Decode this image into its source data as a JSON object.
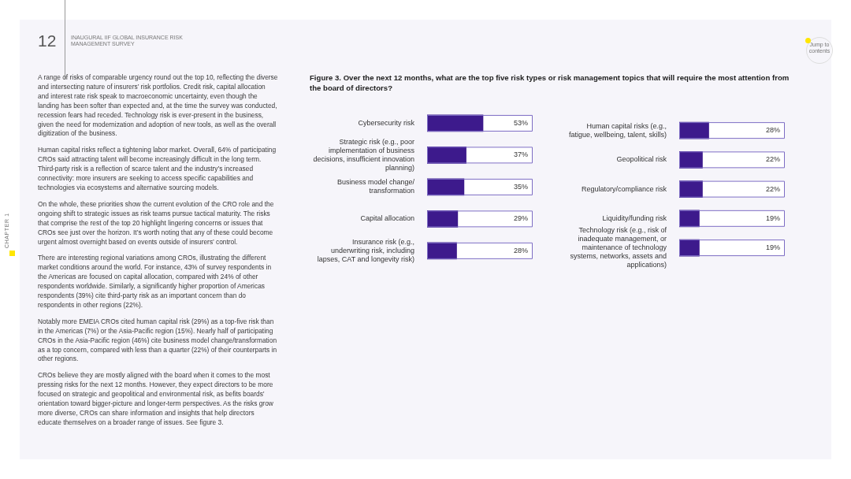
{
  "chart_data": [
    {
      "type": "other",
      "annotations": [
        "12",
        "INAUGURAL IIF GLOBAL INSURANCE RISK MANAGEMENT SURVEY",
        "A range of risks of comparable urgency round out the top 10, reflecting the diverse and intersecting nature of insurers’ risk portfolios. Credit risk, capital allocation and interest rate risk speak to macroeconomic uncertainty, even though the landing has been softer than expected and, at the time the survey was conducted, recession fears had receded. Technology risk is ever-present in the business, given the need for modernization and adoption of new tools, as well as the overall digitization of the business.",
        "Human capital risks reflect a tightening labor market. Overall, 64% of participating CROs said attracting talent will become increasingly difficult in the long term. Third-party risk is a reflection of scarce talent and the industry’s increased connectivity: more insurers are seeking to access specific capabilities and technologies via ecosystems and alternative sourcing models.",
        "On the whole, these priorities show the current evolution of the CRO role and the ongoing shift to strategic issues as risk teams pursue tactical maturity. The risks that comprise the rest of the top 20 highlight lingering concerns or issues that CROs see just over the horizon. It’s worth noting that any of these could become urgent almost overnight based on events outside of insurers’ control.",
        "There are interesting regional variations among CROs, illustrating the different market conditions around the world. For instance, 43% of survey respondents in the Americas are focused on capital allocation, compared with 24% of other respondents worldwide. Similarly, a significantly higher proportion of Americas respondents (39%) cite third-party risk as an important concern than do respondents in other regions (22%).",
        "Notably more EMEIA CROs cited human capital risk (29%) as a top-five risk than in the Americas (7%) or the Asia-Pacific region (15%). Nearly half of participating CROs in the Asia-Pacific region (46%) cite business model change/transformation as a top concern, compared with less than a quarter (22%) of their counterparts in other regions.",
        "CROs believe they are mostly aligned with the board when it comes to the most pressing risks for the next 12 months. However, they expect directors to be more focused on strategic and geopolitical and environmental risk, as befits boards’ orientation toward bigger-picture and longer-term perspectives. As the risks grow more diverse, CROs can share information and insights that help directors educate themselves on a broader range of issues. See figure 3.",
        "CHAPTER 1",
        "Jump to contents"
      ]
    },
    {
      "type": "bar",
      "orientation": "horizontal",
      "title": "Figure 3. Over the next 12 months, what are the top five risk types or risk management topics that will require the most attention from the board of directors?",
      "categories": [
        "Cybersecurity risk",
        "Strategic risk (e.g., poor implementation of business decisions, insufficient innovation planning)",
        "Business model change/ transformation",
        "Capital allocation",
        "Insurance risk (e.g., underwriting risk, including lapses, CAT and longevity risk)"
      ],
      "values": [
        53,
        37,
        35,
        29,
        28
      ],
      "value_labels": [
        "53%",
        "37%",
        "35%",
        "29%",
        "28%"
      ],
      "color": "#3d1a8c",
      "xlim": [
        0,
        100
      ],
      "tick_labels": "y"
    },
    {
      "type": "bar",
      "orientation": "horizontal",
      "categories": [
        "Human capital risks (e.g., fatigue, wellbeing, talent, skills)",
        "Geopolitical risk",
        "Regulatory/compliance risk",
        "Liquidity/funding risk",
        "Technology risk (e.g., risk of inadequate management, or maintenance of technology systems, networks, assets and applications)"
      ],
      "values": [
        28,
        22,
        22,
        19,
        19
      ],
      "value_labels": [
        "28%",
        "22%",
        "22%",
        "19%",
        "19%"
      ],
      "color": "#3d1a8c",
      "xlim": [
        0,
        100
      ],
      "tick_labels": "y"
    }
  ]
}
